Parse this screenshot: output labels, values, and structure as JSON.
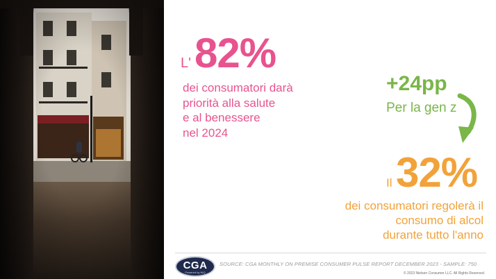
{
  "photo": {
    "description_icon": "paris-street-archway-photo",
    "shop_sign": "LE ROYAL"
  },
  "stat_main": {
    "prefix": "L'",
    "value": "82%",
    "color": "#e8538f"
  },
  "stat_main_text": [
    "dei consumatori darà",
    "priorità alla salute",
    "e al benessere",
    "nel 2024"
  ],
  "stat_genz": {
    "value": "+24pp",
    "label": "Per la gen z",
    "color": "#7ab648"
  },
  "arrow": {
    "icon": "curved-arrow-down-icon",
    "color": "#7ab648"
  },
  "stat_second": {
    "prefix": "Il",
    "value": "32%",
    "color": "#f2a23a"
  },
  "stat_second_text": [
    "dei consumatori regolerà il",
    "consumo di alcol",
    "durante tutto l'anno"
  ],
  "footer": {
    "logo_text": "CGA",
    "logo_sub": "Powered by NIQ",
    "source": "SOURCE: CGA MONTHLY ON PREMISE CONSUMER PULSE REPORT DECEMBER 2023 - SAMPLE: 750",
    "copyright": "© 2023 Nielsen Consumer LLC. All Rights Reserved."
  }
}
